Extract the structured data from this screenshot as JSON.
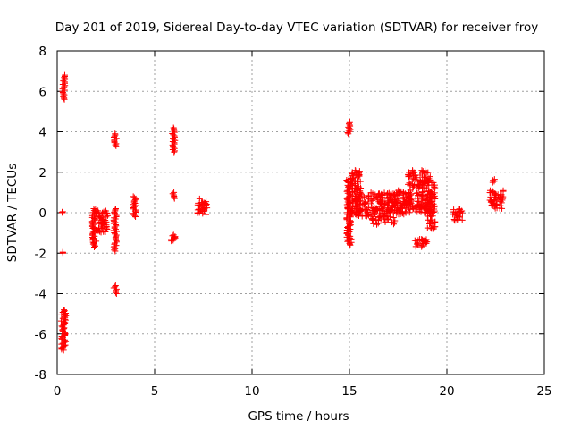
{
  "chart_data": {
    "type": "scatter",
    "title": "Day 201 of 2019, Sidereal Day-to-day VTEC variation (SDTVAR) for receiver froy",
    "xlabel": "GPS time / hours",
    "ylabel": "SDTVAR / TECUs",
    "xlim": [
      0,
      25
    ],
    "ylim": [
      -8,
      8
    ],
    "xticks": [
      0,
      5,
      10,
      15,
      20,
      25
    ],
    "yticks": [
      -8,
      -6,
      -4,
      -2,
      0,
      2,
      4,
      6,
      8
    ],
    "grid": true,
    "marker": "+",
    "marker_color": "#ff0000",
    "series": [
      {
        "name": "SDTVAR",
        "clusters": [
          {
            "x": [
              0.25,
              0.4
            ],
            "y": [
              5.6,
              6.8
            ]
          },
          {
            "x": [
              0.25,
              0.3
            ],
            "y": [
              0.0,
              0.05
            ]
          },
          {
            "x": [
              0.25,
              0.3
            ],
            "y": [
              -2.0,
              -1.95
            ]
          },
          {
            "x": [
              0.2,
              0.45
            ],
            "y": [
              -6.8,
              -4.8
            ]
          },
          {
            "x": [
              1.8,
              2.0
            ],
            "y": [
              -1.7,
              0.2
            ]
          },
          {
            "x": [
              2.0,
              2.6
            ],
            "y": [
              -1.0,
              0.1
            ]
          },
          {
            "x": [
              2.9,
              3.05
            ],
            "y": [
              3.3,
              3.9
            ]
          },
          {
            "x": [
              2.9,
              3.05
            ],
            "y": [
              -1.9,
              0.2
            ]
          },
          {
            "x": [
              2.9,
              3.05
            ],
            "y": [
              -4.0,
              -3.6
            ]
          },
          {
            "x": [
              3.9,
              4.05
            ],
            "y": [
              -0.2,
              0.8
            ]
          },
          {
            "x": [
              5.9,
              6.05
            ],
            "y": [
              3.0,
              4.2
            ]
          },
          {
            "x": [
              5.9,
              6.05
            ],
            "y": [
              0.7,
              1.0
            ]
          },
          {
            "x": [
              5.85,
              6.1
            ],
            "y": [
              -1.4,
              -1.1
            ]
          },
          {
            "x": [
              7.2,
              7.7
            ],
            "y": [
              -0.1,
              0.7
            ]
          },
          {
            "x": [
              14.9,
              15.05
            ],
            "y": [
              3.9,
              4.5
            ]
          },
          {
            "x": [
              14.85,
              15.1
            ],
            "y": [
              -1.6,
              1.7
            ]
          },
          {
            "x": [
              15.1,
              15.6
            ],
            "y": [
              -0.1,
              2.1
            ]
          },
          {
            "x": [
              15.3,
              16.0
            ],
            "y": [
              -0.2,
              0.9
            ]
          },
          {
            "x": [
              16.1,
              17.4
            ],
            "y": [
              -0.6,
              1.0
            ]
          },
          {
            "x": [
              17.4,
              18.1
            ],
            "y": [
              -0.1,
              1.1
            ]
          },
          {
            "x": [
              18.0,
              19.2
            ],
            "y": [
              0.0,
              2.1
            ]
          },
          {
            "x": [
              18.3,
              19.0
            ],
            "y": [
              -1.7,
              -1.3
            ]
          },
          {
            "x": [
              19.0,
              19.4
            ],
            "y": [
              -0.8,
              1.6
            ]
          },
          {
            "x": [
              20.3,
              20.8
            ],
            "y": [
              -0.4,
              0.2
            ]
          },
          {
            "x": [
              22.3,
              22.45
            ],
            "y": [
              1.5,
              1.65
            ]
          },
          {
            "x": [
              22.2,
              22.9
            ],
            "y": [
              0.2,
              1.1
            ]
          }
        ]
      }
    ]
  }
}
